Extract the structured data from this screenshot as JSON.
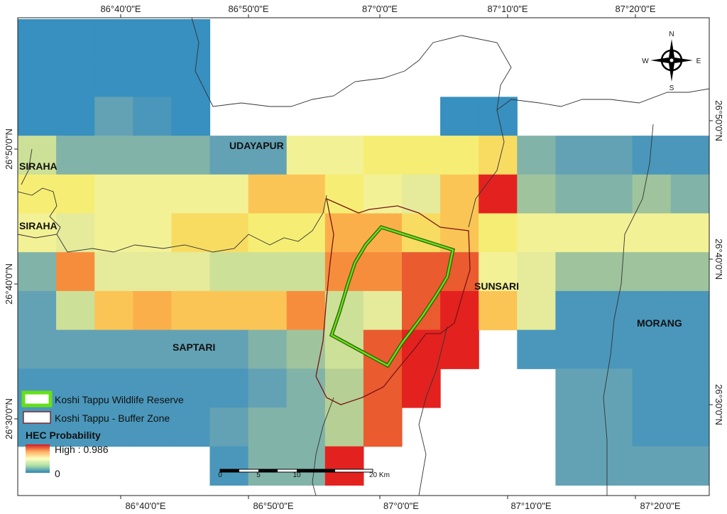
{
  "map": {
    "longitude_labels": [
      "86°40'0\"E",
      "86°50'0\"E",
      "87°0'0\"E",
      "87°10'0\"E",
      "87°20'0\"E"
    ],
    "latitude_labels": [
      "26°50'0\"N",
      "26°40'0\"N",
      "26°30'0\"N"
    ],
    "districts": {
      "udayapur": "UDAYAPUR",
      "siraha_1": "SIRAHA",
      "siraha_2": "SIRAHA",
      "saptari": "SAPTARI",
      "sunsari": "SUNSARI",
      "morang": "MORANG"
    },
    "compass": {
      "n": "N",
      "s": "S",
      "e": "E",
      "w": "W"
    },
    "scale_bar": {
      "labels": [
        "0",
        "5",
        "10",
        "20 Km"
      ]
    },
    "legend": {
      "reserve": "Koshi Tappu Wildlife Reserve",
      "buffer": "Koshi Tappu - Buffer Zone",
      "title": "HEC Probability",
      "high": "High : 0.986",
      "low": "0"
    },
    "colors": {
      "ramp_low": "#2b83ba",
      "ramp_mid": "#ffffbf",
      "ramp_high": "#d7191c",
      "reserve_outline": "#55dd11",
      "buffer_outline": "#7a1414"
    },
    "hec_grid": {
      "cell_columns": 18,
      "cell_rows": 12,
      "note_scale": "0 = no data",
      "rows": [
        [
          3,
          3,
          3,
          3,
          3,
          0,
          0,
          0,
          0,
          0,
          0,
          0,
          0,
          0,
          0,
          0,
          0,
          0
        ],
        [
          3,
          3,
          3,
          3,
          3,
          0,
          0,
          0,
          0,
          0,
          0,
          0,
          0,
          0,
          0,
          0,
          0,
          0
        ],
        [
          3,
          3,
          5,
          4,
          3,
          0,
          0,
          0,
          0,
          0,
          0,
          3,
          3,
          0,
          0,
          0,
          0,
          0
        ],
        [
          9,
          6,
          6,
          6,
          6,
          5,
          5,
          11,
          11,
          12,
          12,
          12,
          13,
          6,
          5,
          5,
          4,
          4
        ],
        [
          12,
          12,
          11,
          11,
          11,
          11,
          14,
          14,
          12,
          11,
          10,
          14,
          18,
          7,
          6,
          6,
          7,
          6
        ],
        [
          11,
          10,
          11,
          11,
          13,
          13,
          12,
          12,
          15,
          15,
          13,
          14,
          12,
          11,
          11,
          11,
          11,
          11
        ],
        [
          6,
          16,
          10,
          10,
          10,
          9,
          9,
          9,
          16,
          16,
          17,
          17,
          11,
          10,
          7,
          7,
          7,
          7
        ],
        [
          5,
          9,
          14,
          15,
          14,
          14,
          14,
          16,
          9,
          10,
          17,
          18,
          14,
          10,
          4,
          4,
          4,
          4
        ],
        [
          5,
          5,
          5,
          5,
          5,
          5,
          6,
          7,
          9,
          17,
          18,
          18,
          0,
          4,
          4,
          4,
          4,
          4
        ],
        [
          4,
          4,
          4,
          4,
          4,
          4,
          5,
          6,
          8,
          17,
          18,
          0,
          0,
          0,
          5,
          5,
          4,
          4
        ],
        [
          4,
          4,
          4,
          4,
          4,
          5,
          6,
          6,
          8,
          17,
          0,
          0,
          0,
          0,
          5,
          5,
          4,
          4
        ],
        [
          0,
          0,
          0,
          0,
          0,
          4,
          6,
          6,
          18,
          0,
          0,
          0,
          0,
          0,
          5,
          5,
          5,
          5
        ]
      ]
    }
  }
}
